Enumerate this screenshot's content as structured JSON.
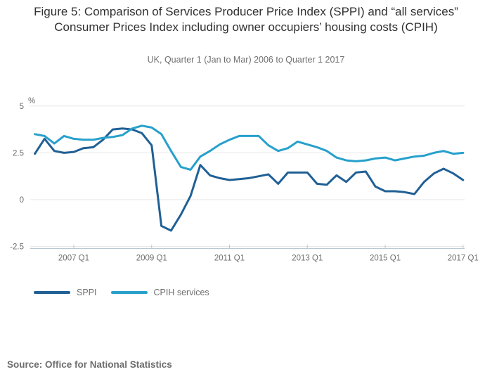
{
  "header": {
    "title": "Figure 5: Comparison of Services Producer Price Index (SPPI) and “all services” Consumer Prices Index including owner occupiers’ housing costs (CPIH)",
    "subtitle": "UK, Quarter 1 (Jan to Mar) 2006 to Quarter 1 2017"
  },
  "footer": {
    "source": "Source: Office for National Statistics"
  },
  "chart_data": {
    "type": "line",
    "unit_label": "%",
    "ylim": [
      -2.5,
      5
    ],
    "grid": "horizontal",
    "legend_position": "bottom-left",
    "yticks": [
      {
        "value": 5,
        "label": "5"
      },
      {
        "value": 2.5,
        "label": "2.5"
      },
      {
        "value": 0,
        "label": "0"
      },
      {
        "value": -2.5,
        "label": "-2.5"
      }
    ],
    "xticks": [
      {
        "index": 4,
        "label": "2007 Q1"
      },
      {
        "index": 12,
        "label": "2009 Q1"
      },
      {
        "index": 20,
        "label": "2011 Q1"
      },
      {
        "index": 28,
        "label": "2013 Q1"
      },
      {
        "index": 36,
        "label": "2015 Q1"
      },
      {
        "index": 44,
        "label": "2017 Q1"
      }
    ],
    "x_categories": [
      "2006 Q1",
      "2006 Q2",
      "2006 Q3",
      "2006 Q4",
      "2007 Q1",
      "2007 Q2",
      "2007 Q3",
      "2007 Q4",
      "2008 Q1",
      "2008 Q2",
      "2008 Q3",
      "2008 Q4",
      "2009 Q1",
      "2009 Q2",
      "2009 Q3",
      "2009 Q4",
      "2010 Q1",
      "2010 Q2",
      "2010 Q3",
      "2010 Q4",
      "2011 Q1",
      "2011 Q2",
      "2011 Q3",
      "2011 Q4",
      "2012 Q1",
      "2012 Q2",
      "2012 Q3",
      "2012 Q4",
      "2013 Q1",
      "2013 Q2",
      "2013 Q3",
      "2013 Q4",
      "2014 Q1",
      "2014 Q2",
      "2014 Q3",
      "2014 Q4",
      "2015 Q1",
      "2015 Q2",
      "2015 Q3",
      "2015 Q4",
      "2016 Q1",
      "2016 Q2",
      "2016 Q3",
      "2016 Q4",
      "2017 Q1"
    ],
    "series": [
      {
        "name": "SPPI",
        "color": "#206095",
        "values": [
          2.45,
          3.25,
          2.6,
          2.5,
          2.55,
          2.75,
          2.8,
          3.2,
          3.75,
          3.8,
          3.75,
          3.55,
          2.9,
          -1.4,
          -1.65,
          -0.8,
          0.2,
          1.85,
          1.3,
          1.15,
          1.05,
          1.1,
          1.15,
          1.25,
          1.35,
          0.85,
          1.45,
          1.45,
          1.45,
          0.85,
          0.8,
          1.3,
          0.95,
          1.45,
          1.5,
          0.7,
          0.45,
          0.45,
          0.4,
          0.3,
          0.95,
          1.4,
          1.65,
          1.4,
          1.05
        ]
      },
      {
        "name": "CPIH services",
        "color": "#27A0CC",
        "values": [
          3.5,
          3.4,
          3.0,
          3.4,
          3.25,
          3.2,
          3.2,
          3.3,
          3.35,
          3.45,
          3.8,
          3.95,
          3.85,
          3.5,
          2.6,
          1.75,
          1.6,
          2.3,
          2.6,
          2.95,
          3.2,
          3.4,
          3.4,
          3.4,
          2.9,
          2.6,
          2.75,
          3.1,
          2.95,
          2.8,
          2.6,
          2.25,
          2.1,
          2.05,
          2.1,
          2.2,
          2.25,
          2.1,
          2.2,
          2.3,
          2.35,
          2.5,
          2.6,
          2.45,
          2.5
        ]
      }
    ],
    "colors": {
      "grid": "#e6e6e6",
      "axis": "#b8c7d1",
      "tick_label": "#6d6d6d"
    }
  }
}
